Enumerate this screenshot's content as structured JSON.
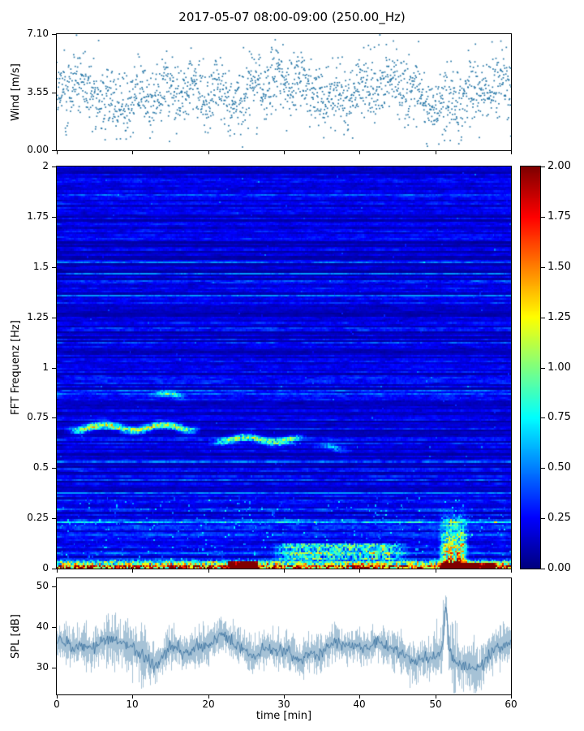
{
  "title": "2017-05-07 08:00-09:00 (250.00_Hz)",
  "xlabel": "time [min]",
  "x_axis": {
    "range": [
      0,
      60
    ],
    "ticks": [
      {
        "v": 0,
        "label": "0"
      },
      {
        "v": 10,
        "label": "10"
      },
      {
        "v": 20,
        "label": "20"
      },
      {
        "v": 30,
        "label": "30"
      },
      {
        "v": 40,
        "label": "40"
      },
      {
        "v": 50,
        "label": "50"
      },
      {
        "v": 60,
        "label": "60"
      }
    ]
  },
  "seed": 20170507,
  "chart_data": [
    {
      "type": "scatter",
      "name": "wind-speed",
      "ylabel": "Wind [m/s]",
      "ylim": [
        0,
        7.1
      ],
      "yticks": [
        {
          "v": 0,
          "label": "0.00"
        },
        {
          "v": 3.55,
          "label": "3.55"
        },
        {
          "v": 7.1,
          "label": "7.10"
        }
      ],
      "x_range": [
        0,
        60
      ],
      "n_points": 1750,
      "mean": 3.55,
      "std": 1.0,
      "marker_color": "#2878a8"
    },
    {
      "type": "heatmap",
      "name": "fft-spectrogram",
      "ylabel": "FFT Frequenz [Hz]",
      "ylim": [
        0,
        2
      ],
      "xlim": [
        0,
        60
      ],
      "clim": [
        0,
        2
      ],
      "colormap": "jet",
      "yticks": [
        {
          "v": 0,
          "label": "0"
        },
        {
          "v": 0.25,
          "label": "0.25"
        },
        {
          "v": 0.5,
          "label": "0.5"
        },
        {
          "v": 0.75,
          "label": "0.75"
        },
        {
          "v": 1,
          "label": "1"
        },
        {
          "v": 1.25,
          "label": "1.25"
        },
        {
          "v": 1.5,
          "label": "1.5"
        },
        {
          "v": 1.75,
          "label": "1.75"
        },
        {
          "v": 2,
          "label": "2"
        }
      ],
      "colorbar_ticks": [
        {
          "v": 0,
          "label": "0.00"
        },
        {
          "v": 0.25,
          "label": "0.25"
        },
        {
          "v": 0.5,
          "label": "0.50"
        },
        {
          "v": 0.75,
          "label": "0.75"
        },
        {
          "v": 1,
          "label": "1.00"
        },
        {
          "v": 1.25,
          "label": "1.25"
        },
        {
          "v": 1.5,
          "label": "1.50"
        },
        {
          "v": 1.75,
          "label": "1.75"
        },
        {
          "v": 2,
          "label": "2.00"
        }
      ],
      "features": [
        {
          "kind": "tonal-streak",
          "t": [
            1,
            19
          ],
          "f": 0.7,
          "peak": 1.1
        },
        {
          "kind": "tonal-streak",
          "t": [
            12,
            17.5
          ],
          "f": 0.86,
          "peak": 0.6
        },
        {
          "kind": "tonal-streak",
          "t": [
            20,
            33
          ],
          "f": 0.64,
          "peak": 0.9
        },
        {
          "kind": "tonal-streak",
          "t": [
            34,
            39
          ],
          "f": 0.6,
          "peak": 0.45
        },
        {
          "kind": "surface-band",
          "t": [
            0,
            60
          ],
          "f": [
            0,
            0.05
          ],
          "peak": 2.0
        },
        {
          "kind": "hotspot",
          "t": [
            22.5,
            26.5
          ],
          "f": [
            0,
            0.03
          ],
          "peak": 2.0
        },
        {
          "kind": "hotspot",
          "t": [
            51,
            58
          ],
          "f": [
            0,
            0.025
          ],
          "peak": 2.0
        },
        {
          "kind": "low-band",
          "t": [
            28,
            47
          ],
          "f": [
            0.04,
            0.12
          ],
          "peak": 1.1
        },
        {
          "kind": "burst",
          "t": [
            50.5,
            54.5
          ],
          "f": [
            0,
            0.32
          ],
          "peak": 1.7
        }
      ]
    },
    {
      "type": "line",
      "name": "spl",
      "ylabel": "SPL [dB]",
      "ylim": [
        23.5,
        52
      ],
      "yticks": [
        {
          "v": 30,
          "label": "30"
        },
        {
          "v": 40,
          "label": "40"
        },
        {
          "v": 50,
          "label": "50"
        }
      ],
      "baseline": 35,
      "spike": {
        "t": 51.4,
        "peak": 50
      },
      "line_color": "#3a7ca8"
    }
  ]
}
